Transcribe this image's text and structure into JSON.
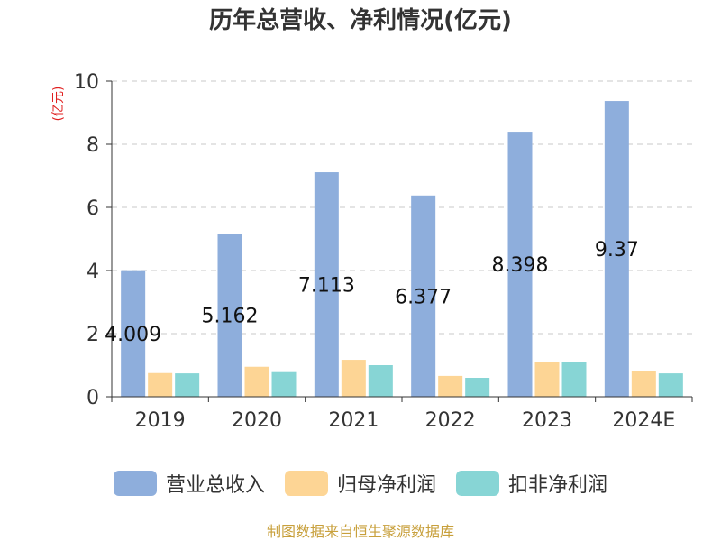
{
  "chart_data": {
    "type": "bar",
    "title": "历年总营收、净利情况(亿元)",
    "ylabel": "(亿元)",
    "xlabel": "",
    "ylim": [
      0,
      10
    ],
    "yticks": [
      0,
      2,
      4,
      6,
      8,
      10
    ],
    "categories": [
      "2019",
      "2020",
      "2021",
      "2022",
      "2023",
      "2024E"
    ],
    "grid": true,
    "legend_position": "bottom",
    "series": [
      {
        "name": "营业总收入",
        "color": "#8eaedc",
        "values": [
          4.009,
          5.162,
          7.113,
          6.377,
          8.398,
          9.37
        ],
        "labels": [
          "4.009",
          "5.162",
          "7.113",
          "6.377",
          "8.398",
          "9.37"
        ]
      },
      {
        "name": "归母净利润",
        "color": "#fdd595",
        "values": [
          0.75,
          0.95,
          1.17,
          0.66,
          1.09,
          0.8
        ]
      },
      {
        "name": "扣非净利润",
        "color": "#87d5d5",
        "values": [
          0.74,
          0.78,
          1.0,
          0.6,
          1.1,
          0.74
        ]
      }
    ]
  },
  "source_note": "制图数据来自恒生聚源数据库"
}
